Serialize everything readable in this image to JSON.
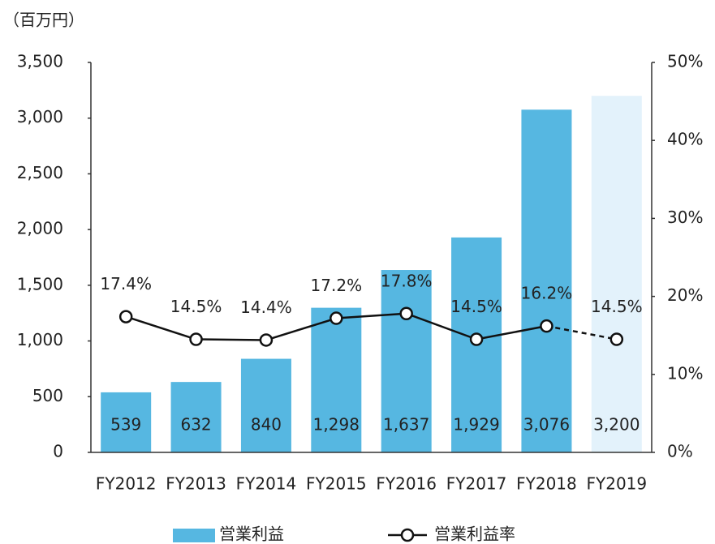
{
  "chart_data": {
    "type": "bar",
    "unit_label": "（百万円）",
    "categories": [
      "FY2012",
      "FY2013",
      "FY2014",
      "FY2015",
      "FY2016",
      "FY2017",
      "FY2018",
      "FY2019"
    ],
    "series": [
      {
        "name": "営業利益",
        "type": "bar",
        "color": "#56b7e1",
        "colors": [
          "#56b7e1",
          "#56b7e1",
          "#56b7e1",
          "#56b7e1",
          "#56b7e1",
          "#56b7e1",
          "#56b7e1",
          "#e3f2fb"
        ],
        "values": [
          539,
          632,
          840,
          1298,
          1637,
          1929,
          3076,
          3200
        ],
        "value_labels": [
          "539",
          "632",
          "840",
          "1,298",
          "1,637",
          "1,929",
          "3,076",
          "3,200"
        ]
      },
      {
        "name": "営業利益率",
        "type": "line",
        "axis": "y2",
        "color": "#111111",
        "dashed": [
          false,
          false,
          false,
          false,
          false,
          false,
          false,
          true
        ],
        "values": [
          17.4,
          14.5,
          14.4,
          17.2,
          17.8,
          14.5,
          16.2,
          14.5
        ],
        "value_labels": [
          "17.4%",
          "14.5%",
          "14.4%",
          "17.2%",
          "17.8%",
          "14.5%",
          "16.2%",
          "14.5%"
        ]
      }
    ],
    "ylim": [
      0,
      3500
    ],
    "yticks": [
      0,
      500,
      {
        "value": 1000,
        "label": "1,000"
      },
      {
        "value": 1500,
        "label": "1,500"
      },
      {
        "value": 2000,
        "label": "2,000"
      },
      {
        "value": 2500,
        "label": "2,500"
      },
      {
        "value": 3000,
        "label": "3,000"
      },
      {
        "value": 3500,
        "label": "3,500"
      }
    ],
    "y2lim": [
      0,
      50
    ],
    "y2ticks": [
      {
        "value": 0,
        "label": "0%"
      },
      {
        "value": 10,
        "label": "10%"
      },
      {
        "value": 20,
        "label": "20%"
      },
      {
        "value": 30,
        "label": "30%"
      },
      {
        "value": 40,
        "label": "40%"
      },
      {
        "value": 50,
        "label": "50%"
      }
    ],
    "grid": false,
    "legend": "bottom"
  }
}
